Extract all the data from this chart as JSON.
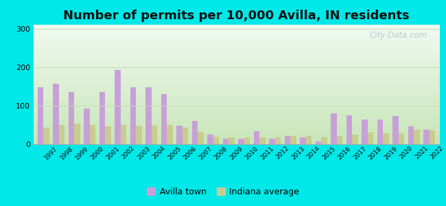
{
  "title": "Number of permits per 10,000 Avilla, IN residents",
  "years": [
    1997,
    1998,
    1999,
    2000,
    2001,
    2002,
    2003,
    2004,
    2005,
    2006,
    2007,
    2008,
    2009,
    2010,
    2011,
    2012,
    2013,
    2014,
    2015,
    2016,
    2017,
    2018,
    2019,
    2020,
    2021,
    2022
  ],
  "avilla": [
    148,
    157,
    136,
    92,
    135,
    192,
    148,
    148,
    130,
    48,
    60,
    25,
    15,
    15,
    33,
    15,
    22,
    17,
    8,
    80,
    75,
    65,
    65,
    73,
    46,
    37
  ],
  "indiana": [
    43,
    50,
    53,
    50,
    46,
    50,
    48,
    48,
    50,
    42,
    32,
    20,
    17,
    17,
    18,
    17,
    22,
    22,
    17,
    22,
    25,
    30,
    28,
    28,
    38,
    35
  ],
  "avilla_color": "#c8a0d8",
  "indiana_color": "#c8cc90",
  "outer_bg": "#00e8e8",
  "ylim": [
    0,
    310
  ],
  "yticks": [
    0,
    100,
    200,
    300
  ],
  "grid_color": "#c8d8b8",
  "title_fontsize": 13,
  "legend_avilla": "Avilla town",
  "legend_indiana": "Indiana average",
  "bg_top_color": "#f0faf0",
  "bg_bottom_color": "#d0ecc0"
}
